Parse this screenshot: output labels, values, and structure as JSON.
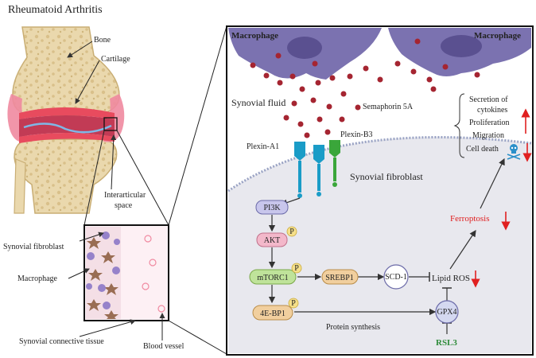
{
  "title": "Rheumatoid Arthritis",
  "joint_labels": {
    "bone": "Bone",
    "cartilage": "Cartilage",
    "interarticular_1": "Interarticular",
    "interarticular_2": "space",
    "synovial_fibroblast": "Synovial fibroblast",
    "macrophage": "Macrophage",
    "synovial_connective_tissue": "Synovial connective tissue",
    "blood_vessel": "Blood vessel"
  },
  "panel": {
    "macrophage_left": "Macrophage",
    "macrophage_right": "Macrophage",
    "synovial_fluid": "Synovial fluid",
    "semaphorin": "Semaphorin 5A",
    "plexin_a1": "Plexin-A1",
    "plexin_b3": "Plexin-B3",
    "synovial_fibroblast": "Synovial fibroblast",
    "outcomes": [
      "Secretion of",
      "cytokines",
      "Proliferation",
      "Migration",
      "Cell death"
    ],
    "pathway": {
      "pi3k": "PI3K",
      "akt": "AKT",
      "mtorc1": "mTORC1",
      "ebp1": "4E-BP1",
      "srebp1": "SREBP1",
      "scd1": "SCD-1",
      "lipid_ros": "Lipid ROS",
      "gpx4": "GPX4",
      "rsl3": "RSL3",
      "ferroptosis": "Ferroptosis",
      "protein_synthesis": "Protein synthesis",
      "phospho": "P"
    }
  },
  "colors": {
    "macrophage": "#7b72b0",
    "cell_bg": "#e9e9ee",
    "bone": "#e8d4a6",
    "red_arrow": "#e02020",
    "rsl3": "#2e8b3a",
    "pi3k": "#c8c6ec",
    "akt": "#f3b8ca",
    "mtorc1": "#bfe39a",
    "srebp1": "#f1cf9e",
    "ebp1": "#f1cf9e",
    "scd1": "#ffffff",
    "gpx4": "#d4d8f0",
    "plexin_a1": "#1a9cc7",
    "plexin_b3": "#3aa63a"
  }
}
